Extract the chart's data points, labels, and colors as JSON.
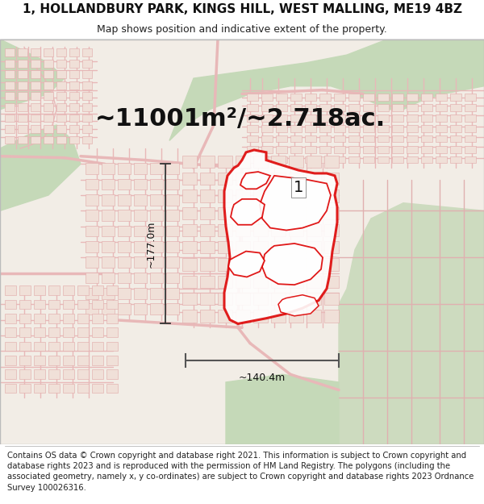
{
  "title_line1": "1, HOLLANDBURY PARK, KINGS HILL, WEST MALLING, ME19 4BZ",
  "title_line2": "Map shows position and indicative extent of the property.",
  "area_text": "~11001m²/~2.718ac.",
  "label_number": "1",
  "dim_vertical": "~177.0m",
  "dim_horizontal": "~140.4m",
  "footer_text": "Contains OS data © Crown copyright and database right 2021. This information is subject to Crown copyright and database rights 2023 and is reproduced with the permission of HM Land Registry. The polygons (including the associated geometry, namely x, y co-ordinates) are subject to Crown copyright and database rights 2023 Ordnance Survey 100026316.",
  "map_bg": "#f5f0eb",
  "road_color": "#e8b8b8",
  "road_outline": "#d4a0a0",
  "green_color": "#c8d8bf",
  "green_dark": "#b8c8af",
  "building_bg": "#f0ebe3",
  "title_fontsize": 11,
  "subtitle_fontsize": 9,
  "area_fontsize": 22,
  "label_fontsize": 14,
  "dim_fontsize": 9,
  "footer_fontsize": 7.2,
  "red_property": "#dd0000",
  "dim_line_color": "#333333",
  "horiz_line_color": "#555555"
}
